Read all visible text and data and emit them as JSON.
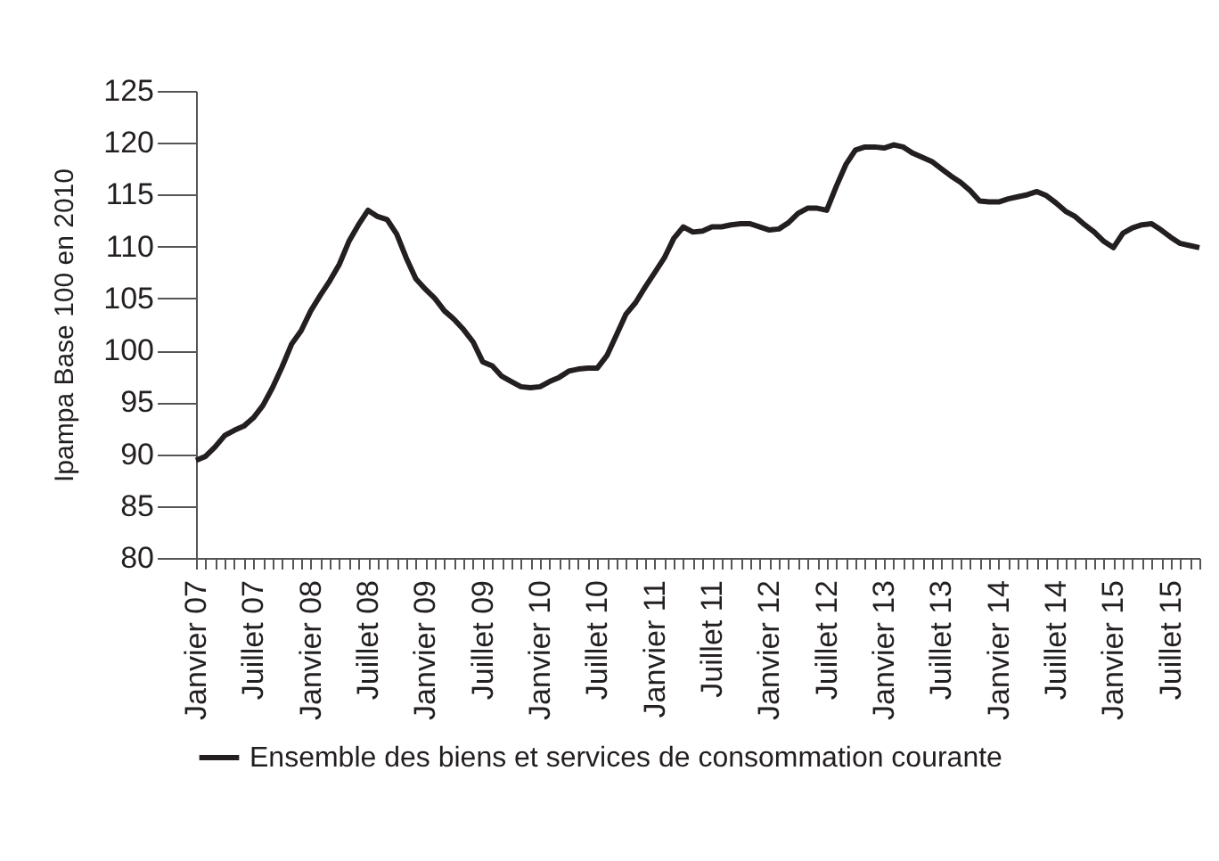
{
  "chart_data": {
    "type": "line",
    "ylabel": "Ipampa Base 100 en 2010",
    "categories": [
      "Janvier 07",
      null,
      null,
      null,
      null,
      null,
      "Juillet 07",
      null,
      null,
      null,
      null,
      null,
      "Janvier 08",
      null,
      null,
      null,
      null,
      null,
      "Juillet 08",
      null,
      null,
      null,
      null,
      null,
      "Janvier 09",
      null,
      null,
      null,
      null,
      null,
      "Juillet 09",
      null,
      null,
      null,
      null,
      null,
      "Janvier 10",
      null,
      null,
      null,
      null,
      null,
      "Juillet 10",
      null,
      null,
      null,
      null,
      null,
      "Janvier 11",
      null,
      null,
      null,
      null,
      null,
      "Juillet 11",
      null,
      null,
      null,
      null,
      null,
      "Janvier 12",
      null,
      null,
      null,
      null,
      null,
      "Juillet 12",
      null,
      null,
      null,
      null,
      null,
      "Janvier 13",
      null,
      null,
      null,
      null,
      null,
      "Juillet 13",
      null,
      null,
      null,
      null,
      null,
      "Janvier 14",
      null,
      null,
      null,
      null,
      null,
      "Juillet 14",
      null,
      null,
      null,
      null,
      null,
      "Janvier 15",
      null,
      null,
      null,
      null,
      null,
      "Juillet 15",
      null,
      null,
      null
    ],
    "series": [
      {
        "name": "Ensemble des biens et services de consommation courante",
        "color": "#231f20",
        "values": [
          89.4,
          89.8,
          90.7,
          91.8,
          92.3,
          92.7,
          93.5,
          94.7,
          96.4,
          98.4,
          100.6,
          101.9,
          103.8,
          105.3,
          106.7,
          108.3,
          110.5,
          112.1,
          113.5,
          112.9,
          112.6,
          111.2,
          108.9,
          106.9,
          105.9,
          105.0,
          103.8,
          103.0,
          102.0,
          100.8,
          98.9,
          98.5,
          97.5,
          97.0,
          96.5,
          96.4,
          96.5,
          97.0,
          97.4,
          98.0,
          98.2,
          98.3,
          98.3,
          99.5,
          101.5,
          103.5,
          104.6,
          106.1,
          107.5,
          108.9,
          110.8,
          111.9,
          111.4,
          111.5,
          111.9,
          111.9,
          112.1,
          112.2,
          112.2,
          111.9,
          111.6,
          111.7,
          112.3,
          113.2,
          113.7,
          113.7,
          113.5,
          115.8,
          117.9,
          119.3,
          119.6,
          119.6,
          119.5,
          119.8,
          119.6,
          119.0,
          118.6,
          118.2,
          117.5,
          116.8,
          116.2,
          115.4,
          114.4,
          114.3,
          114.3,
          114.6,
          114.8,
          115.0,
          115.3,
          114.9,
          114.2,
          113.4,
          112.9,
          112.1,
          111.4,
          110.5,
          109.9,
          111.3,
          111.8,
          112.1,
          112.2,
          111.6,
          110.9,
          110.3,
          110.1,
          109.9
        ]
      }
    ],
    "ylim": [
      80,
      125
    ],
    "yticks": [
      80,
      85,
      90,
      95,
      100,
      105,
      110,
      115,
      120,
      125
    ],
    "grid": false,
    "legend": "bottom",
    "marker": "none",
    "line_style": "solid"
  }
}
